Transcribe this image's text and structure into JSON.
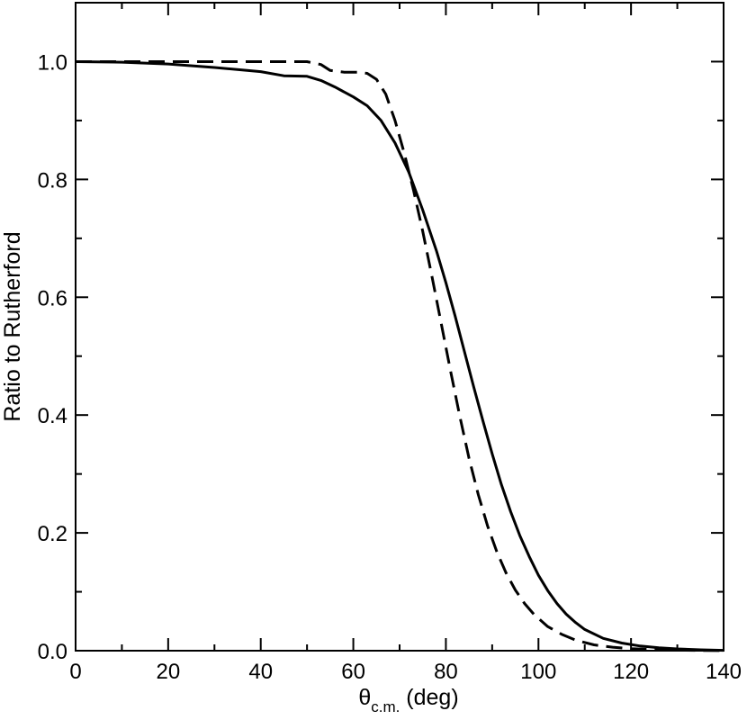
{
  "chart_data": {
    "type": "line",
    "xlabel": {
      "symbol": "θ",
      "subscript": "c.m.",
      "unit": " (deg)"
    },
    "ylabel": "Ratio to Rutherford",
    "xlim": [
      0,
      140
    ],
    "ylim": [
      0,
      1.1
    ],
    "x_ticks": [
      "0",
      "20",
      "40",
      "60",
      "80",
      "100",
      "120",
      "140"
    ],
    "y_ticks": [
      "0.0",
      "0.2",
      "0.4",
      "0.6",
      "0.8",
      "1.0"
    ],
    "grid": false,
    "series": [
      {
        "style": "solid",
        "points": [
          [
            0,
            1.0
          ],
          [
            10,
            0.999
          ],
          [
            20,
            0.996
          ],
          [
            30,
            0.99
          ],
          [
            40,
            0.983
          ],
          [
            45,
            0.976
          ],
          [
            50,
            0.975
          ],
          [
            53,
            0.968
          ],
          [
            56,
            0.957
          ],
          [
            60,
            0.94
          ],
          [
            63,
            0.925
          ],
          [
            66,
            0.9
          ],
          [
            69,
            0.862
          ],
          [
            72,
            0.812
          ],
          [
            75,
            0.748
          ],
          [
            78,
            0.678
          ],
          [
            80,
            0.625
          ],
          [
            82,
            0.568
          ],
          [
            84,
            0.508
          ],
          [
            86,
            0.448
          ],
          [
            88,
            0.39
          ],
          [
            90,
            0.334
          ],
          [
            92,
            0.282
          ],
          [
            94,
            0.236
          ],
          [
            96,
            0.195
          ],
          [
            98,
            0.16
          ],
          [
            100,
            0.128
          ],
          [
            102,
            0.102
          ],
          [
            104,
            0.08
          ],
          [
            106,
            0.062
          ],
          [
            108,
            0.048
          ],
          [
            110,
            0.036
          ],
          [
            114,
            0.021
          ],
          [
            118,
            0.013
          ],
          [
            122,
            0.008
          ],
          [
            126,
            0.005
          ],
          [
            130,
            0.003
          ],
          [
            135,
            0.0015
          ],
          [
            140,
            0.0006
          ]
        ]
      },
      {
        "style": "dashed",
        "points": [
          [
            0,
            1.0
          ],
          [
            10,
            1.0
          ],
          [
            20,
            1.0
          ],
          [
            30,
            1.0
          ],
          [
            40,
            1.0
          ],
          [
            45,
            1.0
          ],
          [
            50,
            1.0
          ],
          [
            53,
            0.995
          ],
          [
            55,
            0.985
          ],
          [
            58,
            0.982
          ],
          [
            61,
            0.982
          ],
          [
            63,
            0.98
          ],
          [
            65,
            0.97
          ],
          [
            67,
            0.945
          ],
          [
            69,
            0.9
          ],
          [
            71,
            0.845
          ],
          [
            73,
            0.782
          ],
          [
            75,
            0.712
          ],
          [
            77,
            0.635
          ],
          [
            79,
            0.555
          ],
          [
            81,
            0.475
          ],
          [
            83,
            0.398
          ],
          [
            85,
            0.327
          ],
          [
            87,
            0.265
          ],
          [
            89,
            0.212
          ],
          [
            91,
            0.168
          ],
          [
            93,
            0.132
          ],
          [
            95,
            0.103
          ],
          [
            97,
            0.08
          ],
          [
            99,
            0.062
          ],
          [
            102,
            0.041
          ],
          [
            105,
            0.028
          ],
          [
            108,
            0.018
          ],
          [
            112,
            0.01
          ],
          [
            116,
            0.006
          ],
          [
            120,
            0.0035
          ],
          [
            125,
            0.002
          ],
          [
            130,
            0.001
          ],
          [
            135,
            0.0005
          ],
          [
            140,
            0.0002
          ]
        ]
      }
    ]
  }
}
